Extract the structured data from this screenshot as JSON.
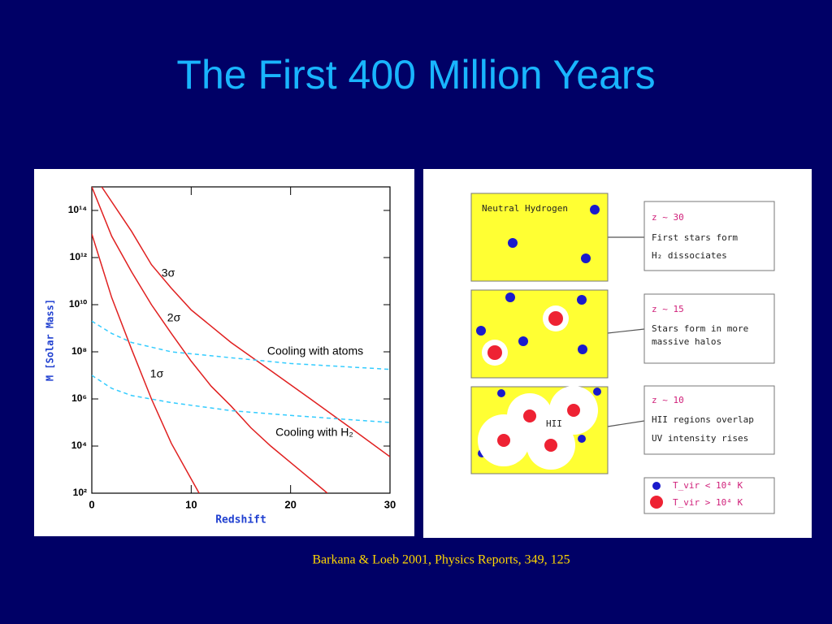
{
  "title": "The First 400 Million Years",
  "chart_data": {
    "type": "line",
    "xlabel": "Redshift",
    "ylabel": "M [Solar Mass]",
    "xlim": [
      0,
      30
    ],
    "xticks": [
      0,
      10,
      20,
      30
    ],
    "ylim": [
      100,
      1000000000000000.0
    ],
    "log_y": true,
    "yticks": [
      {
        "value": 100,
        "label": "10²"
      },
      {
        "value": 10000,
        "label": "10⁴"
      },
      {
        "value": 1000000,
        "label": "10⁶"
      },
      {
        "value": 100000000,
        "label": "10⁸"
      },
      {
        "value": 10000000000,
        "label": "10¹⁰"
      },
      {
        "value": 1000000000000,
        "label": "10¹²"
      },
      {
        "value": 100000000000000,
        "label": "10¹⁴"
      }
    ],
    "series": [
      {
        "name": "1σ",
        "color": "#e02020",
        "style": "solid",
        "x": [
          0,
          2,
          4,
          6,
          8,
          10,
          10.8
        ],
        "values": [
          10000000000000.0,
          20000000000.0,
          130000000.0,
          1000000.0,
          13000.0,
          400,
          100
        ]
      },
      {
        "name": "2σ",
        "color": "#e02020",
        "style": "solid",
        "x": [
          0,
          2,
          4,
          6,
          8,
          10,
          12,
          14,
          16,
          18,
          20,
          22,
          23.7
        ],
        "values": [
          1000000000000000.0,
          8000000000000.0,
          250000000000.0,
          10000000000.0,
          600000000.0,
          40000000.0,
          3500000.0,
          500000.0,
          60000.0,
          10000.0,
          2000.0,
          400,
          100
        ]
      },
      {
        "name": "3σ",
        "color": "#e02020",
        "style": "solid",
        "x": [
          1,
          4,
          6,
          8,
          10,
          14,
          18,
          22,
          26,
          30
        ],
        "values": [
          1000000000000000.0,
          13000000000000.0,
          500000000000.0,
          50000000000.0,
          6000000000.0,
          250000000.0,
          16000000.0,
          1000000.0,
          60000.0,
          3500.0
        ]
      },
      {
        "name": "Cooling with atoms",
        "color": "#33ccff",
        "style": "dashed",
        "x": [
          0,
          2,
          4,
          8,
          14,
          20,
          30
        ],
        "values": [
          2000000000.0,
          600000000.0,
          250000000.0,
          100000000.0,
          56000000.0,
          32000000.0,
          18000000.0
        ]
      },
      {
        "name": "Cooling with H₂",
        "color": "#33ccff",
        "style": "dashed",
        "x": [
          0,
          2,
          4,
          8,
          14,
          20,
          30
        ],
        "values": [
          10000000.0,
          2800000.0,
          1400000.0,
          700000.0,
          320000.0,
          200000.0,
          100000.0
        ]
      }
    ]
  },
  "diagram": {
    "panels": [
      {
        "label": "Neutral Hydrogen"
      },
      {
        "label": "HII"
      }
    ],
    "notes": [
      {
        "z": "z ~ 30",
        "items": [
          "First stars form",
          "H₂ dissociates"
        ]
      },
      {
        "z": "z ~ 15",
        "items": [
          "Stars form in more",
          "massive halos"
        ]
      },
      {
        "z": "z ~ 10",
        "items": [
          "HII regions overlap",
          "UV intensity rises"
        ]
      }
    ],
    "legend": [
      "T_vir < 10⁴ K",
      "T_vir > 10⁴ K"
    ]
  },
  "citation": "Barkana & Loeb 2001, Physics Reports, 349, 125"
}
